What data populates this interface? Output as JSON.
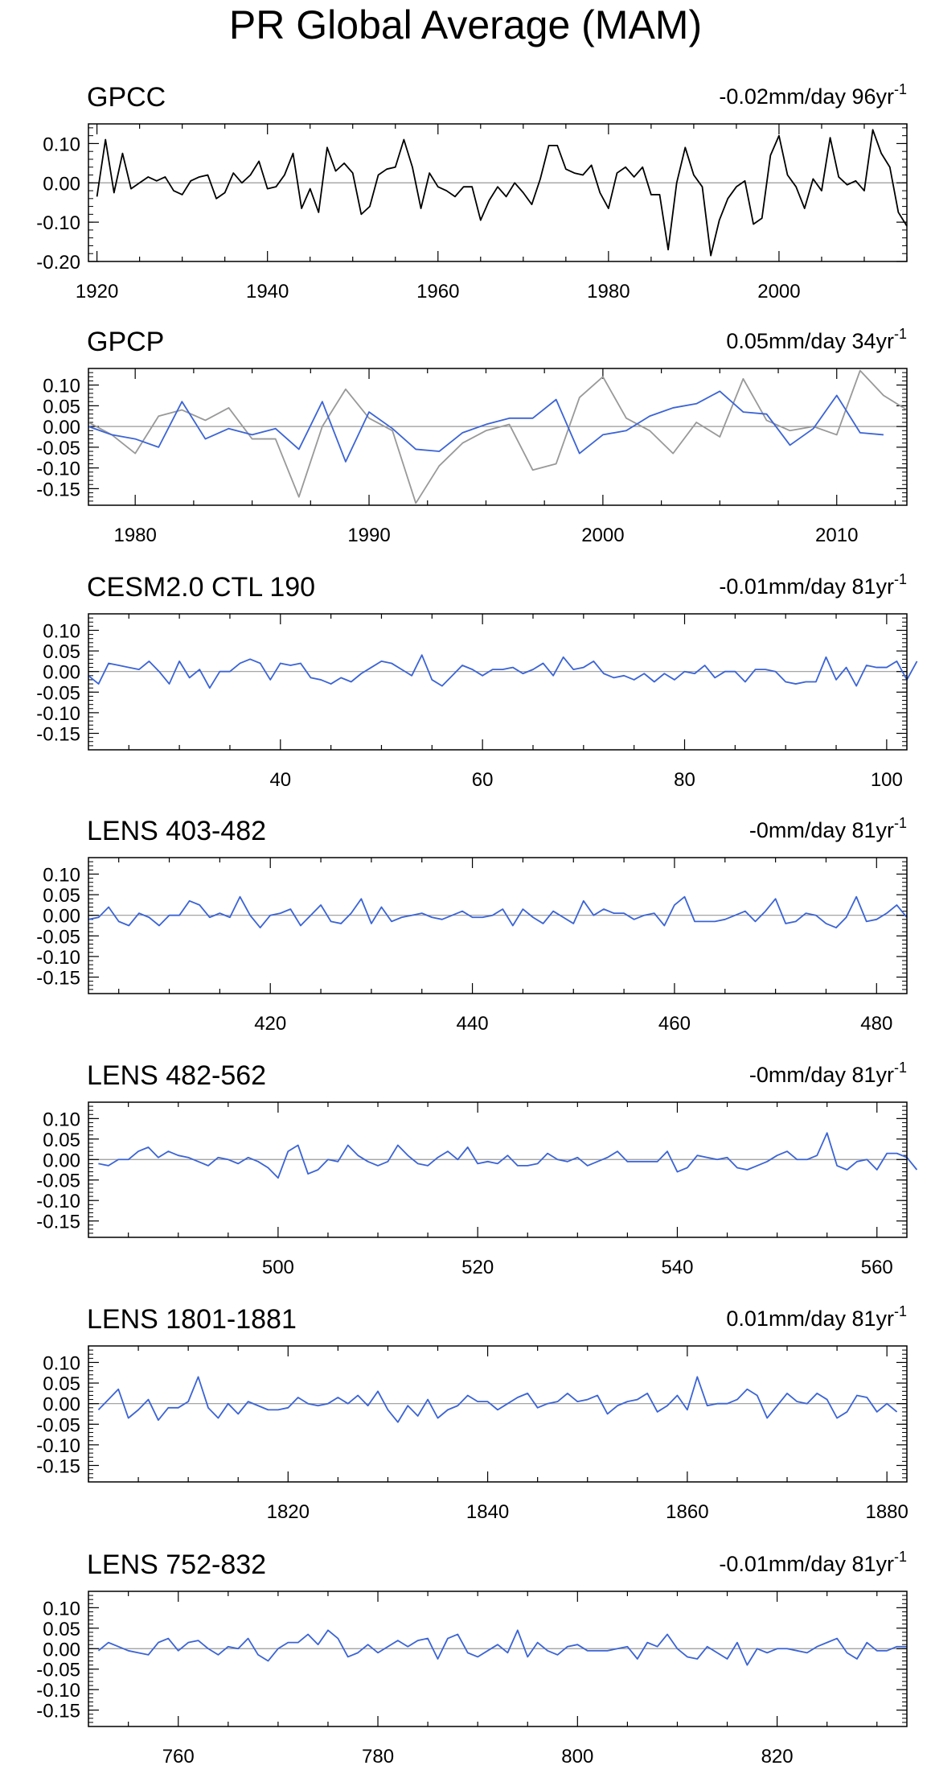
{
  "title": "PR Global Average (MAM)",
  "colors": {
    "black": "#000000",
    "gray": "#999999",
    "blue": "#3b64d6",
    "zero": "#999999"
  },
  "chart_data": [
    {
      "type": "line",
      "title": "GPCC",
      "trend": "-0.02mm/day 96yr",
      "trend_sup": "-1",
      "xlim": [
        1919,
        2015
      ],
      "ylim": [
        -0.2,
        0.15
      ],
      "yticks": [
        -0.2,
        -0.1,
        0.0,
        0.1
      ],
      "yticklabels": [
        "-0.20",
        "-0.10",
        "0.00",
        "0.10"
      ],
      "xticks": [
        1920,
        1940,
        1960,
        1980,
        2000
      ],
      "series": [
        {
          "color": "black",
          "x_start": 1920,
          "values": [
            -0.035,
            0.11,
            -0.025,
            0.075,
            -0.015,
            0.0,
            0.015,
            0.005,
            0.015,
            -0.02,
            -0.03,
            0.005,
            0.015,
            0.02,
            -0.04,
            -0.025,
            0.025,
            0.0,
            0.02,
            0.055,
            -0.015,
            -0.01,
            0.02,
            0.075,
            -0.065,
            -0.015,
            -0.075,
            0.09,
            0.03,
            0.05,
            0.025,
            -0.08,
            -0.06,
            0.02,
            0.035,
            0.04,
            0.11,
            0.04,
            -0.065,
            0.025,
            -0.01,
            -0.02,
            -0.035,
            -0.01,
            -0.01,
            -0.095,
            -0.045,
            -0.01,
            -0.035,
            0.0,
            -0.025,
            -0.055,
            0.01,
            0.095,
            0.095,
            0.035,
            0.025,
            0.02,
            0.045,
            -0.025,
            -0.065,
            0.025,
            0.04,
            0.015,
            0.04,
            -0.03,
            -0.03,
            -0.17,
            0.0,
            0.09,
            0.02,
            -0.01,
            -0.185,
            -0.095,
            -0.04,
            -0.01,
            0.005,
            -0.105,
            -0.09,
            0.07,
            0.12,
            0.02,
            -0.01,
            -0.065,
            0.01,
            -0.02,
            0.115,
            0.015,
            -0.005,
            0.005,
            -0.02,
            0.135,
            0.075,
            0.04,
            -0.075,
            -0.11
          ]
        }
      ]
    },
    {
      "type": "line",
      "title": "GPCP",
      "trend": "0.05mm/day 34yr",
      "trend_sup": "-1",
      "xlim": [
        1978,
        2013
      ],
      "ylim": [
        -0.19,
        0.14
      ],
      "yticks": [
        -0.15,
        -0.1,
        -0.05,
        0.0,
        0.05,
        0.1
      ],
      "yticklabels": [
        "-0.15",
        "-0.10",
        "-0.05",
        "0.00",
        "0.05",
        "0.10"
      ],
      "xticks": [
        1980,
        1990,
        2000,
        2010
      ],
      "series": [
        {
          "color": "gray",
          "x_start": 1978,
          "values": [
            0.01,
            -0.02,
            -0.065,
            0.025,
            0.04,
            0.015,
            0.045,
            -0.03,
            -0.03,
            -0.17,
            0.0,
            0.09,
            0.02,
            -0.01,
            -0.185,
            -0.095,
            -0.04,
            -0.01,
            0.005,
            -0.105,
            -0.09,
            0.07,
            0.12,
            0.02,
            -0.01,
            -0.065,
            0.01,
            -0.025,
            0.115,
            0.015,
            -0.01,
            0.0,
            -0.02,
            0.135,
            0.075,
            0.04
          ]
        },
        {
          "color": "blue",
          "x_start": 1978,
          "values": [
            0.0,
            -0.02,
            -0.03,
            -0.05,
            0.06,
            -0.03,
            -0.005,
            -0.02,
            -0.005,
            -0.055,
            0.06,
            -0.085,
            0.035,
            -0.005,
            -0.055,
            -0.06,
            -0.015,
            0.005,
            0.02,
            0.02,
            0.065,
            -0.065,
            -0.02,
            -0.01,
            0.025,
            0.045,
            0.055,
            0.085,
            0.035,
            0.03,
            -0.045,
            -0.005,
            0.075,
            -0.015,
            -0.02
          ]
        }
      ]
    },
    {
      "type": "line",
      "title": "CESM2.0 CTL 190",
      "trend": "-0.01mm/day 81yr",
      "trend_sup": "-1",
      "xlim": [
        21,
        102
      ],
      "ylim": [
        -0.19,
        0.14
      ],
      "yticks": [
        -0.15,
        -0.1,
        -0.05,
        0.0,
        0.05,
        0.1
      ],
      "yticklabels": [
        "-0.15",
        "-0.10",
        "-0.05",
        "0.00",
        "0.05",
        "0.10"
      ],
      "xticks": [
        40,
        60,
        80,
        100
      ],
      "series": [
        {
          "color": "blue",
          "x_start": 21,
          "values": [
            -0.01,
            -0.03,
            0.02,
            0.015,
            0.01,
            0.005,
            0.025,
            0.0,
            -0.03,
            0.025,
            -0.015,
            0.005,
            -0.04,
            0.0,
            0.0,
            0.02,
            0.03,
            0.02,
            -0.02,
            0.02,
            0.015,
            0.02,
            -0.015,
            -0.02,
            -0.03,
            -0.015,
            -0.025,
            -0.005,
            0.01,
            0.025,
            0.02,
            0.005,
            -0.01,
            0.04,
            -0.02,
            -0.035,
            -0.01,
            0.015,
            0.005,
            -0.01,
            0.005,
            0.005,
            0.01,
            -0.005,
            0.005,
            0.02,
            -0.01,
            0.035,
            0.005,
            0.01,
            0.025,
            -0.005,
            -0.015,
            -0.01,
            -0.02,
            -0.005,
            -0.025,
            -0.005,
            -0.02,
            0.0,
            -0.005,
            0.015,
            -0.015,
            0.0,
            0.0,
            -0.025,
            0.005,
            0.005,
            0.0,
            -0.025,
            -0.03,
            -0.025,
            -0.025,
            0.035,
            -0.02,
            0.01,
            -0.035,
            0.015,
            0.01,
            0.01,
            0.025,
            -0.02,
            0.025
          ]
        }
      ]
    },
    {
      "type": "line",
      "title": "LENS 403-482",
      "trend": "-0mm/day 81yr",
      "trend_sup": "-1",
      "xlim": [
        402,
        483
      ],
      "ylim": [
        -0.19,
        0.14
      ],
      "yticks": [
        -0.15,
        -0.1,
        -0.05,
        0.0,
        0.05,
        0.1
      ],
      "yticklabels": [
        "-0.15",
        "-0.10",
        "-0.05",
        "0.00",
        "0.05",
        "0.10"
      ],
      "xticks": [
        420,
        440,
        460,
        480
      ],
      "series": [
        {
          "color": "blue",
          "x_start": 402,
          "values": [
            -0.01,
            -0.005,
            0.02,
            -0.015,
            -0.025,
            0.005,
            -0.005,
            -0.025,
            0.0,
            0.0,
            0.035,
            0.025,
            -0.005,
            0.005,
            -0.005,
            0.045,
            0.0,
            -0.03,
            0.0,
            0.005,
            0.015,
            -0.025,
            0.0,
            0.025,
            -0.015,
            -0.02,
            0.005,
            0.04,
            -0.02,
            0.02,
            -0.015,
            -0.005,
            0.0,
            0.005,
            -0.005,
            -0.01,
            0.0,
            0.01,
            -0.005,
            -0.005,
            0.0,
            0.015,
            -0.025,
            0.015,
            -0.005,
            -0.02,
            0.01,
            -0.005,
            -0.02,
            0.035,
            0.0,
            0.015,
            0.005,
            0.005,
            -0.01,
            0.0,
            0.005,
            -0.025,
            0.025,
            0.045,
            -0.015,
            -0.015,
            -0.015,
            -0.01,
            0.0,
            0.01,
            -0.015,
            0.01,
            0.04,
            -0.02,
            -0.015,
            0.005,
            0.0,
            -0.02,
            -0.03,
            -0.005,
            0.045,
            -0.015,
            -0.01,
            0.005,
            0.025,
            -0.005
          ]
        }
      ]
    },
    {
      "type": "line",
      "title": "LENS 482-562",
      "trend": "-0mm/day 81yr",
      "trend_sup": "-1",
      "xlim": [
        481,
        563
      ],
      "ylim": [
        -0.19,
        0.14
      ],
      "yticks": [
        -0.15,
        -0.1,
        -0.05,
        0.0,
        0.05,
        0.1
      ],
      "yticklabels": [
        "-0.15",
        "-0.10",
        "-0.05",
        "0.00",
        "0.05",
        "0.10"
      ],
      "xticks": [
        500,
        520,
        540,
        560
      ],
      "series": [
        {
          "color": "blue",
          "x_start": 482,
          "values": [
            -0.01,
            -0.015,
            0.0,
            0.0,
            0.02,
            0.03,
            0.005,
            0.02,
            0.01,
            0.005,
            -0.005,
            -0.015,
            0.005,
            0.0,
            -0.01,
            0.005,
            -0.005,
            -0.02,
            -0.045,
            0.02,
            0.035,
            -0.035,
            -0.025,
            0.0,
            -0.005,
            0.035,
            0.01,
            -0.005,
            -0.015,
            -0.005,
            0.035,
            0.01,
            -0.01,
            -0.015,
            0.005,
            0.02,
            0.0,
            0.03,
            -0.01,
            -0.005,
            -0.01,
            0.01,
            -0.015,
            -0.015,
            -0.01,
            0.015,
            0.0,
            -0.005,
            0.005,
            -0.015,
            -0.005,
            0.005,
            0.02,
            -0.005,
            -0.005,
            -0.005,
            -0.005,
            0.02,
            -0.03,
            -0.02,
            0.01,
            0.005,
            0.0,
            0.005,
            -0.02,
            -0.025,
            -0.015,
            -0.005,
            0.01,
            0.02,
            0.0,
            0.0,
            0.01,
            0.065,
            -0.015,
            -0.025,
            -0.005,
            0.0,
            -0.025,
            0.015,
            0.015,
            0.005,
            -0.025
          ]
        }
      ]
    },
    {
      "type": "line",
      "title": "LENS 1801-1881",
      "trend": "0.01mm/day 81yr",
      "trend_sup": "-1",
      "xlim": [
        1800,
        1882
      ],
      "ylim": [
        -0.19,
        0.14
      ],
      "yticks": [
        -0.15,
        -0.1,
        -0.05,
        0.0,
        0.05,
        0.1
      ],
      "yticklabels": [
        "-0.15",
        "-0.10",
        "-0.05",
        "0.00",
        "0.05",
        "0.10"
      ],
      "xticks": [
        1820,
        1840,
        1860,
        1880
      ],
      "series": [
        {
          "color": "blue",
          "x_start": 1801,
          "values": [
            -0.015,
            0.01,
            0.035,
            -0.035,
            -0.015,
            0.01,
            -0.04,
            -0.01,
            -0.01,
            0.005,
            0.065,
            -0.01,
            -0.035,
            0.0,
            -0.025,
            0.005,
            -0.005,
            -0.015,
            -0.015,
            -0.01,
            0.015,
            0.0,
            -0.005,
            0.0,
            0.015,
            0.0,
            0.02,
            -0.005,
            0.03,
            -0.015,
            -0.045,
            -0.005,
            -0.03,
            0.01,
            -0.035,
            -0.015,
            -0.005,
            0.02,
            0.005,
            0.005,
            -0.015,
            0.0,
            0.015,
            0.025,
            -0.01,
            0.0,
            0.005,
            0.025,
            0.005,
            0.01,
            0.02,
            -0.025,
            -0.005,
            0.005,
            0.01,
            0.025,
            -0.02,
            -0.005,
            0.02,
            -0.015,
            0.065,
            -0.005,
            0.0,
            0.0,
            0.01,
            0.035,
            0.02,
            -0.035,
            -0.005,
            0.025,
            0.005,
            0.0,
            0.025,
            0.01,
            -0.035,
            -0.02,
            0.02,
            0.015,
            -0.02,
            0.0,
            -0.02
          ]
        }
      ]
    },
    {
      "type": "line",
      "title": "LENS 752-832",
      "trend": "-0.01mm/day 81yr",
      "trend_sup": "-1",
      "xlim": [
        751,
        833
      ],
      "ylim": [
        -0.19,
        0.14
      ],
      "yticks": [
        -0.15,
        -0.1,
        -0.05,
        0.0,
        0.05,
        0.1
      ],
      "yticklabels": [
        "-0.15",
        "-0.10",
        "-0.05",
        "0.00",
        "0.05",
        "0.10"
      ],
      "xticks": [
        760,
        780,
        800,
        820
      ],
      "series": [
        {
          "color": "blue",
          "x_start": 752,
          "values": [
            -0.005,
            0.015,
            0.005,
            -0.005,
            -0.01,
            -0.015,
            0.015,
            0.025,
            -0.005,
            0.015,
            0.02,
            0.0,
            -0.015,
            0.005,
            0.0,
            0.025,
            -0.015,
            -0.03,
            0.0,
            0.015,
            0.015,
            0.035,
            0.01,
            0.045,
            0.025,
            -0.02,
            -0.01,
            0.01,
            -0.01,
            0.005,
            0.02,
            0.005,
            0.02,
            0.025,
            -0.025,
            0.025,
            0.035,
            -0.01,
            -0.02,
            -0.005,
            0.01,
            -0.01,
            0.045,
            -0.02,
            0.015,
            -0.005,
            -0.015,
            0.005,
            0.01,
            -0.005,
            -0.005,
            -0.005,
            0.0,
            0.005,
            -0.025,
            0.015,
            0.005,
            0.035,
            0.0,
            -0.02,
            -0.025,
            0.005,
            -0.01,
            -0.025,
            0.015,
            -0.04,
            0.0,
            -0.01,
            0.0,
            0.0,
            -0.005,
            -0.01,
            0.005,
            0.015,
            0.025,
            -0.01,
            -0.025,
            0.015,
            -0.005,
            -0.005,
            0.005,
            0.005
          ]
        }
      ]
    }
  ]
}
